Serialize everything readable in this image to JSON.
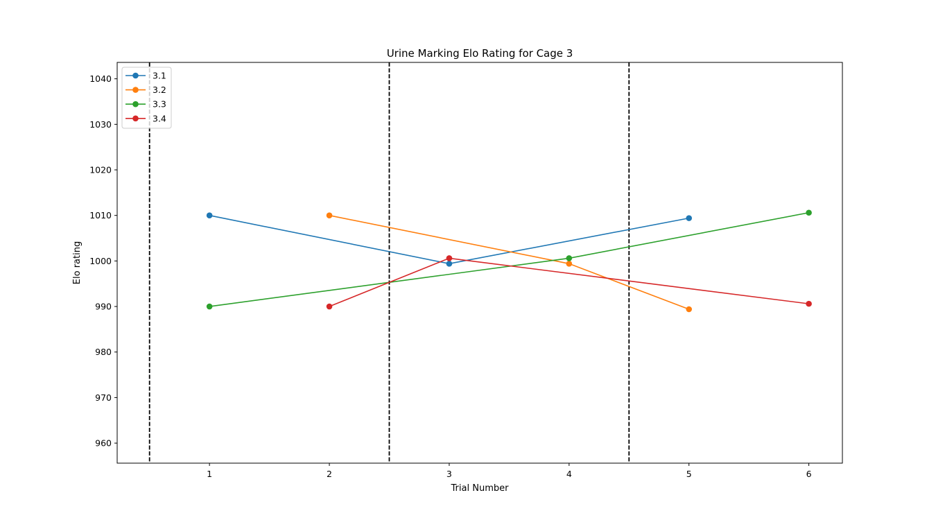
{
  "chart_data": {
    "type": "line",
    "title": "Urine Marking Elo Rating for  Cage 3",
    "xlabel": "Trial Number",
    "ylabel": "Elo rating",
    "xlim": [
      0.23,
      6.28
    ],
    "ylim": [
      955.6,
      1043.6
    ],
    "xticks": [
      1,
      2,
      3,
      4,
      5,
      6
    ],
    "yticks": [
      960,
      970,
      980,
      990,
      1000,
      1010,
      1020,
      1030,
      1040
    ],
    "grid": false,
    "legend_position": "top-left",
    "vlines": {
      "x": [
        0.5,
        2.5,
        4.5
      ],
      "style": "dashed",
      "color": "#000000"
    },
    "series": [
      {
        "name": "3.1",
        "color": "#1f77b4",
        "x": [
          1,
          3,
          5
        ],
        "y": [
          1010,
          999.4,
          1009.4
        ]
      },
      {
        "name": "3.2",
        "color": "#ff7f0e",
        "x": [
          2,
          4,
          5
        ],
        "y": [
          1010,
          999.4,
          989.4
        ]
      },
      {
        "name": "3.3",
        "color": "#2ca02c",
        "x": [
          1,
          4,
          6
        ],
        "y": [
          990,
          1000.6,
          1010.6
        ]
      },
      {
        "name": "3.4",
        "color": "#d62728",
        "x": [
          2,
          3,
          6
        ],
        "y": [
          990,
          1000.6,
          990.6
        ]
      }
    ]
  }
}
